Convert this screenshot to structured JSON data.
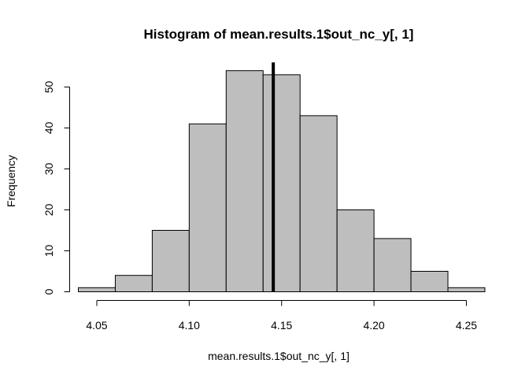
{
  "chart_data": {
    "type": "bar",
    "title": "Histogram of mean.results.1$out_nc_y[, 1]",
    "xlabel": "mean.results.1$out_nc_y[, 1]",
    "ylabel": "Frequency",
    "bins": [
      {
        "start": 4.04,
        "end": 4.06,
        "count": 1
      },
      {
        "start": 4.06,
        "end": 4.08,
        "count": 4
      },
      {
        "start": 4.08,
        "end": 4.1,
        "count": 15
      },
      {
        "start": 4.1,
        "end": 4.12,
        "count": 41
      },
      {
        "start": 4.12,
        "end": 4.14,
        "count": 54
      },
      {
        "start": 4.14,
        "end": 4.16,
        "count": 53
      },
      {
        "start": 4.16,
        "end": 4.18,
        "count": 43
      },
      {
        "start": 4.18,
        "end": 4.2,
        "count": 20
      },
      {
        "start": 4.2,
        "end": 4.22,
        "count": 13
      },
      {
        "start": 4.22,
        "end": 4.24,
        "count": 5
      },
      {
        "start": 4.24,
        "end": 4.26,
        "count": 1
      }
    ],
    "x_ticks": [
      "4.05",
      "4.10",
      "4.15",
      "4.20",
      "4.25"
    ],
    "y_ticks": [
      "0",
      "10",
      "20",
      "30",
      "40",
      "50"
    ],
    "xlim": [
      4.04,
      4.26
    ],
    "ylim": [
      0,
      55
    ],
    "vline": {
      "x": 4.1455,
      "ymax": 56
    },
    "bar_color": "#bebebe",
    "line_color": "#000000",
    "grid": false,
    "legend": "none"
  }
}
